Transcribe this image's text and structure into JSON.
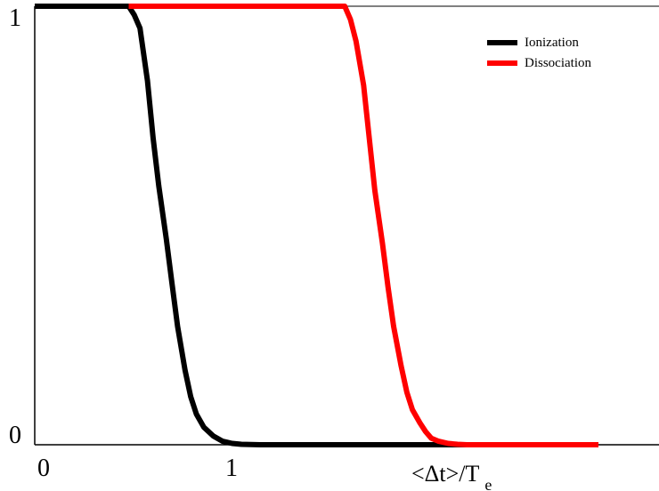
{
  "chart_data": {
    "type": "line",
    "title": "",
    "xlabel": {
      "main": "<Δt>/T",
      "subscript": "e"
    },
    "ylabel": "",
    "xlim": [
      0,
      3.0
    ],
    "ylim": [
      0,
      1
    ],
    "x_ticks": [
      {
        "value": 0,
        "label": "0"
      },
      {
        "value": 1,
        "label": "1"
      }
    ],
    "y_ticks": [
      {
        "value": 0,
        "label": "0"
      },
      {
        "value": 1,
        "label": "1"
      }
    ],
    "grid": false,
    "legend_position": "top-right",
    "series": [
      {
        "name": "Ionization",
        "color": "#000000",
        "x": [
          0.0,
          0.5,
          0.53,
          0.56,
          0.6,
          0.63,
          0.66,
          0.7,
          0.73,
          0.76,
          0.8,
          0.83,
          0.86,
          0.9,
          0.95,
          1.0,
          1.05,
          1.1,
          1.2,
          1.3,
          1.5,
          2.0,
          2.5,
          3.0
        ],
        "values": [
          1.0,
          1.0,
          0.98,
          0.95,
          0.83,
          0.7,
          0.59,
          0.47,
          0.37,
          0.27,
          0.17,
          0.11,
          0.07,
          0.04,
          0.02,
          0.008,
          0.003,
          0.001,
          0.0,
          0.0,
          0.0,
          0.0,
          0.0,
          0.0
        ]
      },
      {
        "name": "Dissociation",
        "color": "#ff0000",
        "x": [
          0.5,
          1.0,
          1.5,
          1.65,
          1.68,
          1.71,
          1.75,
          1.78,
          1.81,
          1.85,
          1.88,
          1.91,
          1.95,
          1.98,
          2.01,
          2.05,
          2.08,
          2.11,
          2.15,
          2.2,
          2.25,
          2.3,
          2.5,
          3.0
        ],
        "values": [
          1.0,
          1.0,
          1.0,
          1.0,
          0.97,
          0.92,
          0.82,
          0.7,
          0.58,
          0.46,
          0.36,
          0.27,
          0.18,
          0.12,
          0.08,
          0.05,
          0.03,
          0.015,
          0.008,
          0.003,
          0.001,
          0.0,
          0.0,
          0.0
        ]
      }
    ]
  }
}
